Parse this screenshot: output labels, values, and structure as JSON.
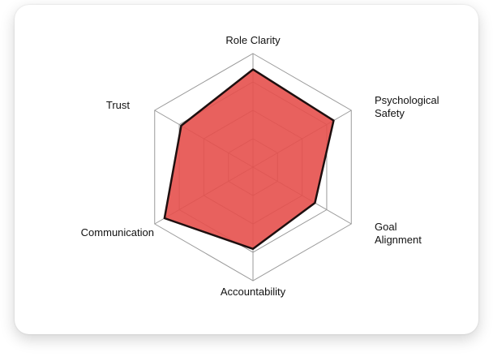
{
  "chart_data": {
    "type": "radar",
    "categories": [
      "Role Clarity",
      "Psychological Safety",
      "Goal Alignment",
      "Accountability",
      "Communication",
      "Trust"
    ],
    "values": [
      86,
      82,
      63,
      72,
      90,
      73
    ],
    "ylim": [
      0,
      100
    ],
    "grid_rings": 4,
    "color": "#e5504c",
    "line_color": "#1e0f0f",
    "grid_color": "#9a9a9a"
  }
}
